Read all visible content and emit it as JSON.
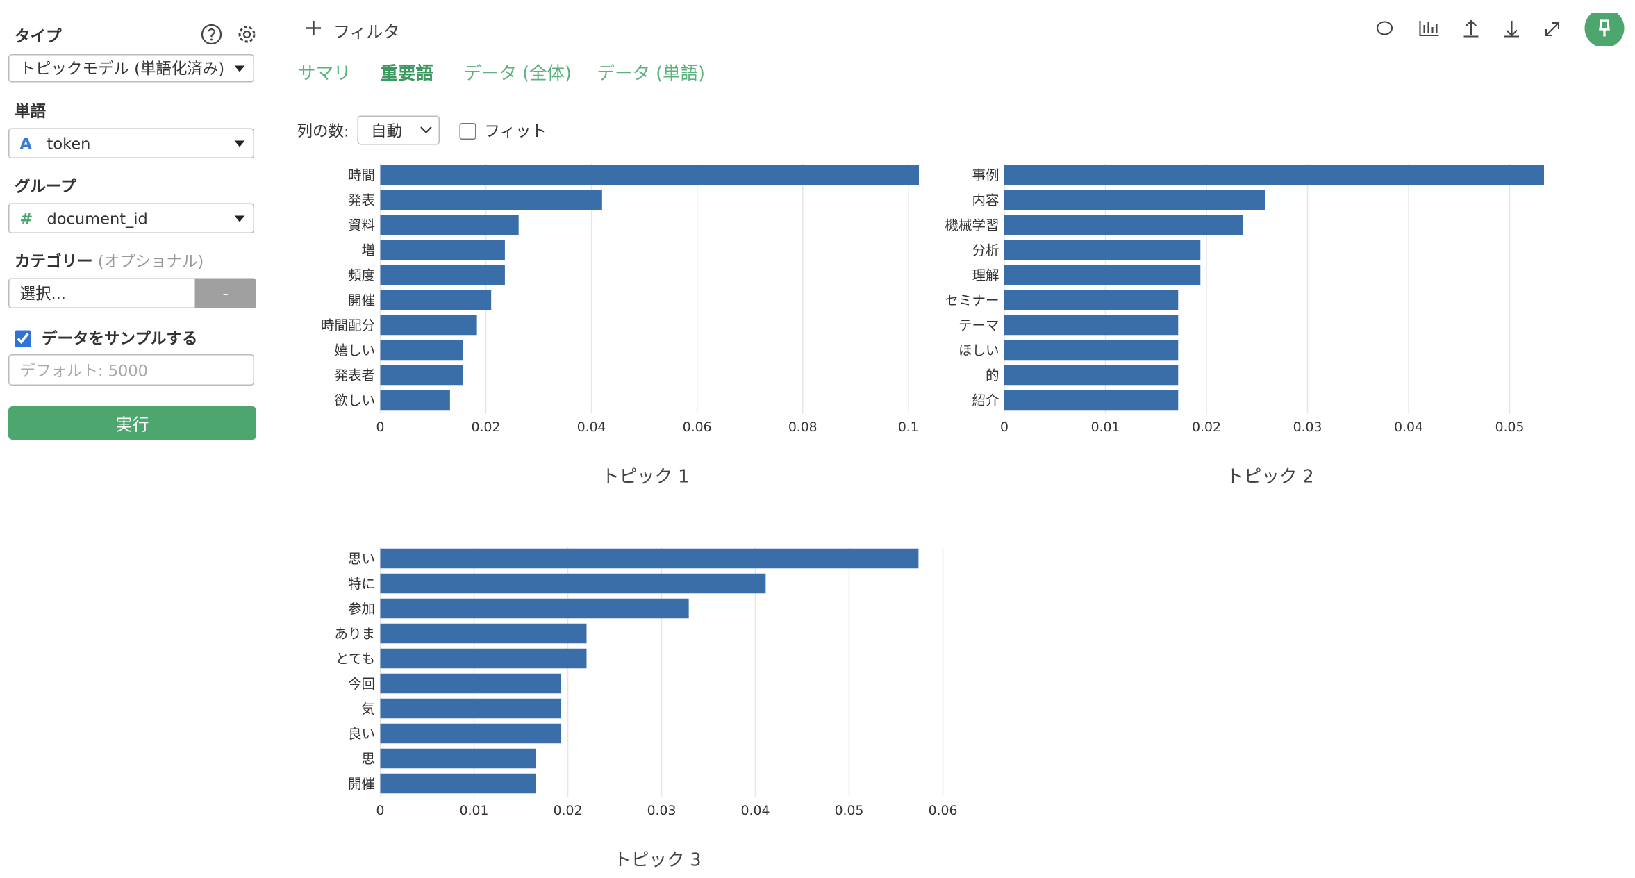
{
  "sidebar": {
    "type_label": "タイプ",
    "type_value": "トピックモデル (単語化済み)",
    "word_label": "単語",
    "word_icon": "A",
    "word_value": "token",
    "group_label": "グループ",
    "group_icon": "#",
    "group_value": "document_id",
    "category_label": "カテゴリー",
    "category_optional": "(オプショナル)",
    "category_placeholder": "選択...",
    "category_button": "-",
    "sample_label": "データをサンプルする",
    "sample_checked": true,
    "sample_placeholder": "デフォルト: 5000",
    "run_button": "実行"
  },
  "toolbar": {
    "filter": "フィルタ"
  },
  "tabs": [
    "サマリ",
    "重要語",
    "データ (全体)",
    "データ (単語)"
  ],
  "active_tab": 1,
  "options": {
    "columns_label": "列の数:",
    "columns_value": "自動",
    "fit_label": "フィット",
    "fit_checked": false
  },
  "chart_data": [
    {
      "type": "bar",
      "orientation": "horizontal",
      "title": "トピック 1",
      "categories": [
        "時間",
        "発表",
        "資料",
        "増",
        "頻度",
        "開催",
        "時間配分",
        "嬉しい",
        "発表者",
        "欲しい"
      ],
      "values": [
        0.102,
        0.042,
        0.0262,
        0.0236,
        0.0236,
        0.021,
        0.0183,
        0.0157,
        0.0157,
        0.0132
      ],
      "color": "#3a6ea9",
      "xlim": [
        0,
        0.102
      ],
      "xticks": [
        0,
        0.02,
        0.04,
        0.06,
        0.08,
        0.1
      ],
      "grid": true
    },
    {
      "type": "bar",
      "orientation": "horizontal",
      "title": "トピック 2",
      "categories": [
        "事例",
        "内容",
        "機械学習",
        "分析",
        "理解",
        "セミナー",
        "テーマ",
        "ほしい",
        "的",
        "紹介"
      ],
      "values": [
        0.0534,
        0.0258,
        0.0236,
        0.0194,
        0.0194,
        0.0172,
        0.0172,
        0.0172,
        0.0172,
        0.0172
      ],
      "color": "#3a6ea9",
      "xlim": [
        0,
        0.0534
      ],
      "xticks": [
        0,
        0.01,
        0.02,
        0.03,
        0.04,
        0.05
      ],
      "grid": true
    },
    {
      "type": "bar",
      "orientation": "horizontal",
      "title": "トピック 3",
      "categories": [
        "思い",
        "特に",
        "参加",
        "ありま",
        "とても",
        "今回",
        "気",
        "良い",
        "思",
        "開催"
      ],
      "values": [
        0.0574,
        0.0411,
        0.0329,
        0.022,
        0.022,
        0.0193,
        0.0193,
        0.0193,
        0.0166,
        0.0166
      ],
      "color": "#3a6ea9",
      "xlim": [
        0,
        0.06
      ],
      "xticks": [
        0,
        0.01,
        0.02,
        0.03,
        0.04,
        0.05,
        0.06
      ],
      "grid": true
    }
  ]
}
